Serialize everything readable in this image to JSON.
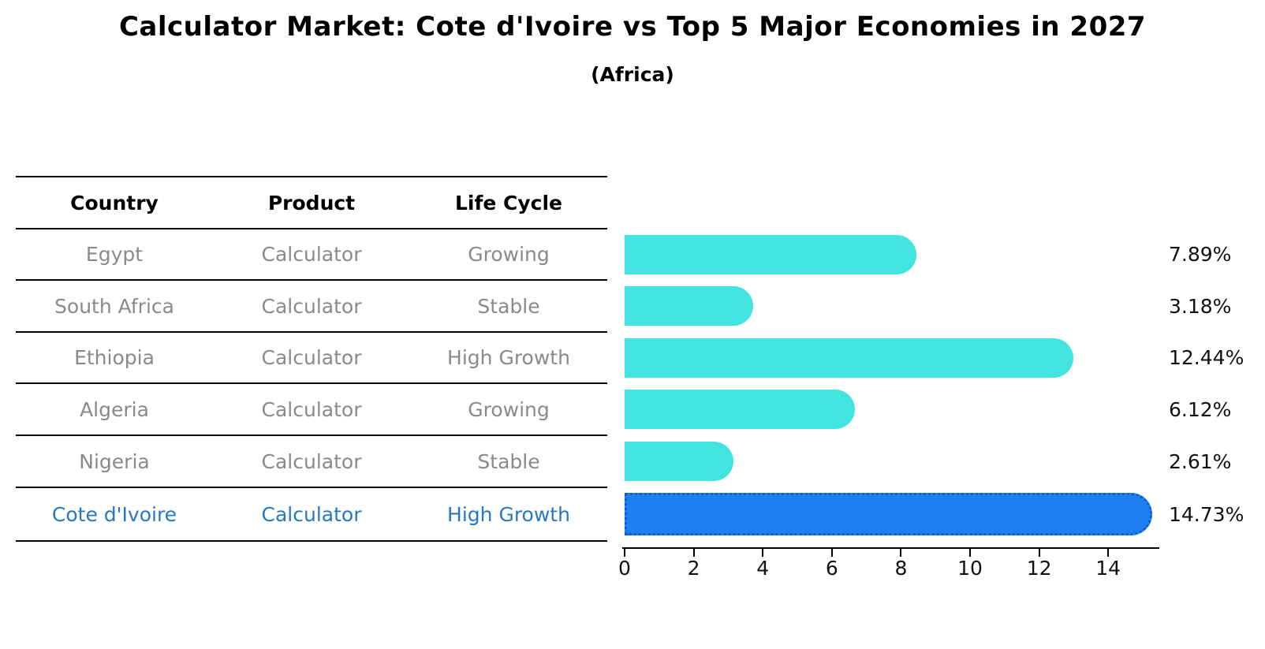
{
  "title": "Calculator Market: Cote d'Ivoire vs Top 5 Major Economies in 2027",
  "subtitle": "(Africa)",
  "table": {
    "headers": [
      "Country",
      "Product",
      "Life Cycle"
    ],
    "rows": [
      {
        "country": "Egypt",
        "product": "Calculator",
        "life_cycle": "Growing",
        "highlighted": false
      },
      {
        "country": "South Africa",
        "product": "Calculator",
        "life_cycle": "Stable",
        "highlighted": false
      },
      {
        "country": "Ethiopia",
        "product": "Calculator",
        "life_cycle": "High Growth",
        "highlighted": false
      },
      {
        "country": "Algeria",
        "product": "Calculator",
        "life_cycle": "Growing",
        "highlighted": false
      },
      {
        "country": "Nigeria",
        "product": "Calculator",
        "life_cycle": "Stable",
        "highlighted": false
      },
      {
        "country": "Cote d'Ivoire",
        "product": "Calculator",
        "life_cycle": "High Growth",
        "highlighted": true
      }
    ]
  },
  "chart_data": {
    "type": "bar",
    "orientation": "horizontal",
    "title": "Calculator Market: Cote d'Ivoire vs Top 5 Major Economies in 2027",
    "subtitle": "(Africa)",
    "categories": [
      "Egypt",
      "South Africa",
      "Ethiopia",
      "Algeria",
      "Nigeria",
      "Cote d'Ivoire"
    ],
    "values": [
      7.89,
      3.18,
      12.44,
      6.12,
      2.61,
      14.73
    ],
    "value_labels": [
      "7.89%",
      "3.18%",
      "12.44%",
      "6.12%",
      "2.61%",
      "14.73%"
    ],
    "x_ticks": [
      0,
      2,
      4,
      6,
      8,
      10,
      12,
      14
    ],
    "xlim": [
      0,
      15.5
    ],
    "grid": false,
    "legend": "none",
    "highlight_index": 5
  },
  "colors": {
    "bar": "#42E4E0",
    "highlight_bar": "#1E80F0",
    "highlight_text": "#2778C2",
    "row_text": "#8a8a8a",
    "axis": "#000000"
  }
}
